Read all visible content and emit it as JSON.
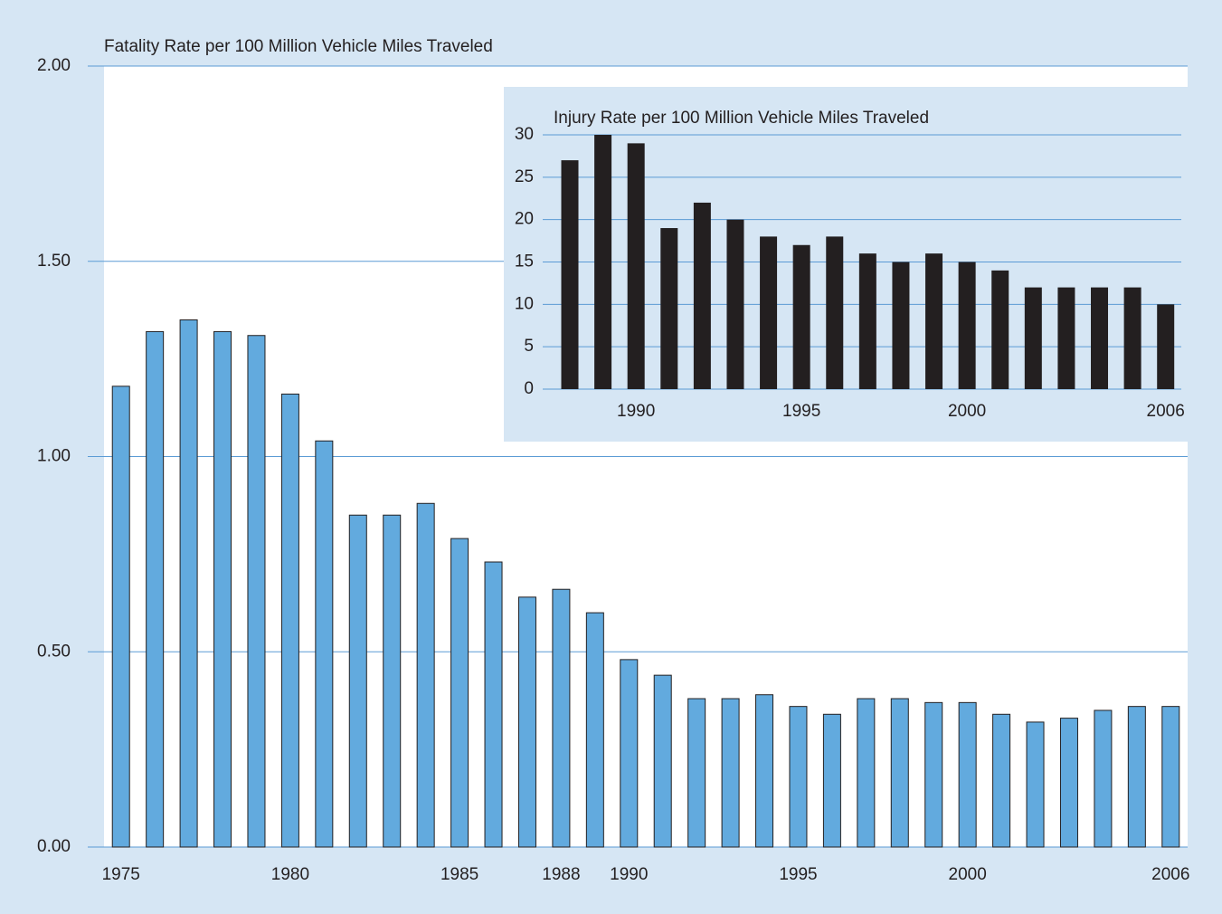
{
  "chart_data": [
    {
      "type": "bar",
      "title": "Fatality Rate per 100 Million Vehicle Miles Traveled",
      "categories": [
        "1975",
        null,
        null,
        null,
        null,
        "1980",
        null,
        null,
        null,
        null,
        "1985",
        null,
        null,
        "1988",
        null,
        "1990",
        null,
        null,
        null,
        null,
        "1995",
        null,
        null,
        null,
        null,
        "2000",
        null,
        null,
        null,
        null,
        null,
        "2006"
      ],
      "values": [
        1.18,
        1.32,
        1.35,
        1.32,
        1.31,
        1.16,
        1.04,
        0.85,
        0.85,
        0.88,
        0.79,
        0.73,
        0.64,
        0.66,
        0.6,
        0.48,
        0.44,
        0.38,
        0.38,
        0.39,
        0.36,
        0.34,
        0.38,
        0.38,
        0.37,
        0.37,
        0.34,
        0.32,
        0.33,
        0.35,
        0.36,
        0.36
      ],
      "color": "#62aade",
      "ylim": [
        0,
        2
      ],
      "yticks": [
        {
          "value": 0,
          "label": "0.00"
        },
        {
          "value": 0.5,
          "label": "0.50"
        },
        {
          "value": 1,
          "label": "1.00"
        },
        {
          "value": 1.5,
          "label": "1.50"
        },
        {
          "value": 2,
          "label": "2.00"
        }
      ],
      "grid": true
    },
    {
      "type": "bar",
      "title": "Injury Rate per 100 Million Vehicle Miles Traveled",
      "categories": [
        null,
        null,
        "1990",
        null,
        null,
        null,
        null,
        "1995",
        null,
        null,
        null,
        null,
        "2000",
        null,
        null,
        null,
        null,
        null,
        "2006"
      ],
      "values": [
        27,
        30,
        29,
        19,
        22,
        20,
        18,
        17,
        18,
        16,
        15,
        16,
        15,
        14,
        12,
        12,
        12,
        12,
        10
      ],
      "color": "#231f20",
      "ylim": [
        0,
        30
      ],
      "yticks": [
        0,
        5,
        10,
        15,
        20,
        25,
        30
      ],
      "grid": true
    }
  ]
}
